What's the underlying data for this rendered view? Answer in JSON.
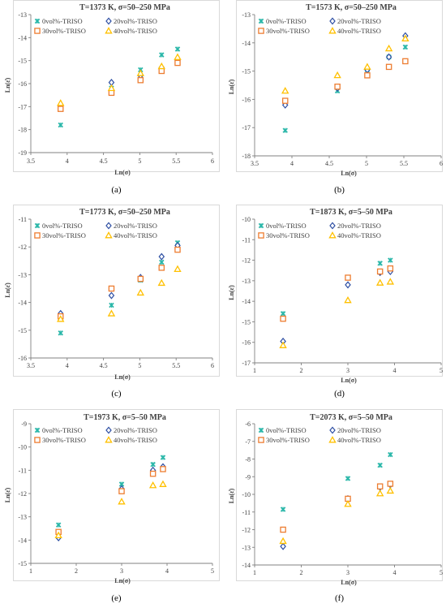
{
  "figure": {
    "panels": [
      "(a)",
      "(b)",
      "(c)",
      "(d)",
      "(e)",
      "(f)"
    ]
  },
  "series_styles": [
    {
      "marker": "x",
      "color": "#2ab7a9"
    },
    {
      "marker": "diamond",
      "color": "#2e4fa3"
    },
    {
      "marker": "square",
      "color": "#ed7d31"
    },
    {
      "marker": "triangle",
      "color": "#ffc000"
    }
  ],
  "chart_data": [
    {
      "type": "scatter",
      "panel": "(a)",
      "title": "T=1373 K, σ=50–250 MPa",
      "xlabel": "Ln(σ)",
      "ylabel": "Ln(ε̇)",
      "xlim": [
        3.5,
        6
      ],
      "ylim": [
        -19,
        -13
      ],
      "xticks": [
        "3.5",
        "4",
        "4.5",
        "5",
        "5.5",
        "6"
      ],
      "yticks": [
        "-13",
        "-14",
        "-15",
        "-16",
        "-17",
        "-18",
        "-19"
      ],
      "grid": false,
      "legend": "top-left",
      "series": [
        {
          "name": "0vol%-TRISO",
          "x": [
            3.91,
            4.61,
            5.01,
            5.3,
            5.52
          ],
          "y": [
            -17.8,
            -16.2,
            -15.4,
            -14.75,
            -14.5
          ]
        },
        {
          "name": "20vol%-TRISO",
          "x": [
            3.91,
            4.61,
            5.01,
            5.3,
            5.52
          ],
          "y": [
            -17.0,
            -15.95,
            -15.65,
            -15.3,
            -15.0
          ]
        },
        {
          "name": "30vol%-TRISO",
          "x": [
            3.91,
            4.61,
            5.01,
            5.3,
            5.52
          ],
          "y": [
            -17.1,
            -16.4,
            -15.85,
            -15.45,
            -15.1
          ]
        },
        {
          "name": "40vol%-TRISO",
          "x": [
            3.91,
            4.61,
            5.01,
            5.3,
            5.52
          ],
          "y": [
            -16.85,
            -16.2,
            -15.55,
            -15.25,
            -14.85
          ]
        }
      ]
    },
    {
      "type": "scatter",
      "panel": "(b)",
      "title": "T=1573 K, σ=50–250 MPa",
      "xlabel": "Ln(σ)",
      "ylabel": "Ln(ε̇)",
      "xlim": [
        3.5,
        6
      ],
      "ylim": [
        -18,
        -13
      ],
      "xticks": [
        "3.5",
        "4",
        "4.5",
        "5",
        "5.5",
        "6"
      ],
      "yticks": [
        "-13",
        "-14",
        "-15",
        "-16",
        "-17",
        "-18"
      ],
      "grid": false,
      "legend": "top-left",
      "series": [
        {
          "name": "0vol%-TRISO",
          "x": [
            3.91,
            4.61,
            5.01,
            5.3,
            5.52
          ],
          "y": [
            -17.1,
            -15.7,
            -14.95,
            -14.5,
            -14.15
          ]
        },
        {
          "name": "20vol%-TRISO",
          "x": [
            3.91,
            4.61,
            5.01,
            5.3,
            5.52
          ],
          "y": [
            -16.2,
            -15.6,
            -14.95,
            -14.5,
            -13.75
          ]
        },
        {
          "name": "30vol%-TRISO",
          "x": [
            3.91,
            4.61,
            5.01,
            5.3,
            5.52
          ],
          "y": [
            -16.05,
            -15.55,
            -15.15,
            -14.85,
            -14.65
          ]
        },
        {
          "name": "40vol%-TRISO",
          "x": [
            3.91,
            4.61,
            5.01,
            5.3,
            5.52
          ],
          "y": [
            -15.7,
            -15.15,
            -14.85,
            -14.2,
            -13.85
          ]
        }
      ]
    },
    {
      "type": "scatter",
      "panel": "(c)",
      "title": "T=1773 K, σ=50–250 MPa",
      "xlabel": "Ln(σ)",
      "ylabel": "Ln(ε̇)",
      "xlim": [
        3.5,
        6
      ],
      "ylim": [
        -16,
        -11
      ],
      "xticks": [
        "3.5",
        "4",
        "4.5",
        "5",
        "5.5",
        "6"
      ],
      "yticks": [
        "-11",
        "-12",
        "-13",
        "-14",
        "-15",
        "-16"
      ],
      "grid": false,
      "legend": "top-left",
      "series": [
        {
          "name": "0vol%-TRISO",
          "x": [
            3.91,
            4.61,
            5.01,
            5.3,
            5.52
          ],
          "y": [
            -15.1,
            -14.1,
            -13.2,
            -12.55,
            -11.85
          ]
        },
        {
          "name": "20vol%-TRISO",
          "x": [
            3.91,
            4.61,
            5.01,
            5.3,
            5.52
          ],
          "y": [
            -14.4,
            -13.75,
            -13.1,
            -12.35,
            -11.95
          ]
        },
        {
          "name": "30vol%-TRISO",
          "x": [
            3.91,
            4.61,
            5.01,
            5.3,
            5.52
          ],
          "y": [
            -14.5,
            -13.5,
            -13.15,
            -12.75,
            -12.1
          ]
        },
        {
          "name": "40vol%-TRISO",
          "x": [
            3.91,
            4.61,
            5.01,
            5.3,
            5.52
          ],
          "y": [
            -14.6,
            -14.4,
            -13.65,
            -13.3,
            -12.8
          ]
        }
      ]
    },
    {
      "type": "scatter",
      "panel": "(d)",
      "title": "T=1873 K, σ=5–50 MPa",
      "xlabel": "Ln(σ)",
      "ylabel": "Ln(ε̇)",
      "xlim": [
        1,
        5
      ],
      "ylim": [
        -17,
        -10
      ],
      "xticks": [
        "1",
        "2",
        "3",
        "4",
        "5"
      ],
      "yticks": [
        "-10",
        "-11",
        "-12",
        "-13",
        "-14",
        "-15",
        "-16",
        "-17"
      ],
      "grid": false,
      "legend": "top-left",
      "series": [
        {
          "name": "0vol%-TRISO",
          "x": [
            1.61,
            3.0,
            3.69,
            3.91
          ],
          "y": [
            -14.6,
            -12.85,
            -12.15,
            -12.0
          ]
        },
        {
          "name": "20vol%-TRISO",
          "x": [
            1.61,
            3.0,
            3.69,
            3.91
          ],
          "y": [
            -15.95,
            -13.2,
            -12.6,
            -12.55
          ]
        },
        {
          "name": "30vol%-TRISO",
          "x": [
            1.61,
            3.0,
            3.69,
            3.91
          ],
          "y": [
            -14.85,
            -12.85,
            -12.55,
            -12.4
          ]
        },
        {
          "name": "40vol%-TRISO",
          "x": [
            1.61,
            3.0,
            3.69,
            3.91
          ],
          "y": [
            -16.15,
            -13.95,
            -13.1,
            -13.05
          ]
        }
      ]
    },
    {
      "type": "scatter",
      "panel": "(e)",
      "title": "T=1973 K, σ=5–50 MPa",
      "xlabel": "Ln(σ)",
      "ylabel": "Ln(ε̇)",
      "xlim": [
        1,
        5
      ],
      "ylim": [
        -15,
        -9
      ],
      "xticks": [
        "1",
        "2",
        "3",
        "4",
        "5"
      ],
      "yticks": [
        "-9",
        "-10",
        "-11",
        "-12",
        "-13",
        "-14",
        "-15"
      ],
      "grid": false,
      "legend": "top-left",
      "series": [
        {
          "name": "0vol%-TRISO",
          "x": [
            1.61,
            3.0,
            3.69,
            3.91
          ],
          "y": [
            -13.35,
            -11.6,
            -10.75,
            -10.45
          ]
        },
        {
          "name": "20vol%-TRISO",
          "x": [
            1.61,
            3.0,
            3.69,
            3.91
          ],
          "y": [
            -13.9,
            -11.8,
            -11.0,
            -10.85
          ]
        },
        {
          "name": "30vol%-TRISO",
          "x": [
            1.61,
            3.0,
            3.69,
            3.91
          ],
          "y": [
            -13.65,
            -11.9,
            -11.15,
            -10.95
          ]
        },
        {
          "name": "40vol%-TRISO",
          "x": [
            1.61,
            3.0,
            3.69,
            3.91
          ],
          "y": [
            -13.8,
            -12.35,
            -11.65,
            -11.6
          ]
        }
      ]
    },
    {
      "type": "scatter",
      "panel": "(f)",
      "title": "T=2073 K, σ=5–50 MPa",
      "xlabel": "Ln(σ)",
      "ylabel": "Ln(ε̇)",
      "xlim": [
        1,
        5
      ],
      "ylim": [
        -14,
        -6
      ],
      "xticks": [
        "1",
        "2",
        "3",
        "4",
        "5"
      ],
      "yticks": [
        "-6",
        "-7",
        "-8",
        "-9",
        "-10",
        "-11",
        "-12",
        "-13",
        "-14"
      ],
      "grid": false,
      "legend": "top-left",
      "series": [
        {
          "name": "0vol%-TRISO",
          "x": [
            1.61,
            3.0,
            3.69,
            3.91
          ],
          "y": [
            -10.85,
            -9.1,
            -8.35,
            -7.75
          ]
        },
        {
          "name": "20vol%-TRISO",
          "x": [
            1.61,
            3.0,
            3.69,
            3.91
          ],
          "y": [
            -12.95,
            -10.25,
            -9.6,
            -9.45
          ]
        },
        {
          "name": "30vol%-TRISO",
          "x": [
            1.61,
            3.0,
            3.69,
            3.91
          ],
          "y": [
            -12.0,
            -10.25,
            -9.55,
            -9.4
          ]
        },
        {
          "name": "40vol%-TRISO",
          "x": [
            1.61,
            3.0,
            3.69,
            3.91
          ],
          "y": [
            -12.65,
            -10.55,
            -9.95,
            -9.8
          ]
        }
      ]
    }
  ]
}
